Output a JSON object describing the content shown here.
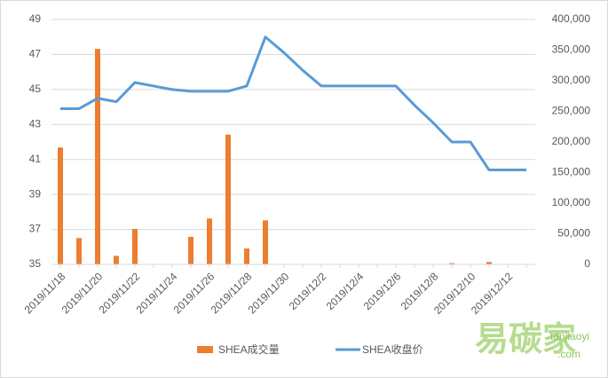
{
  "chart_data": {
    "type": "bar_line",
    "categories": [
      "2019/11/18",
      null,
      "2019/11/20",
      null,
      "2019/11/22",
      null,
      "2019/11/24",
      null,
      "2019/11/26",
      null,
      "2019/11/28",
      null,
      "2019/11/30",
      null,
      "2019/12/2",
      null,
      "2019/12/4",
      null,
      "2019/12/6",
      null,
      "2019/12/8",
      null,
      "2019/12/10",
      null,
      "2019/12/12",
      null
    ],
    "series": [
      {
        "name": "SHEA成交量",
        "type": "bar",
        "axis": "y2",
        "color": "#ed7d31",
        "values": [
          191000,
          43000,
          352000,
          14000,
          58000,
          null,
          null,
          45000,
          75000,
          212000,
          26000,
          72000,
          null,
          null,
          null,
          null,
          null,
          null,
          null,
          null,
          null,
          2000,
          null,
          4000,
          null,
          null
        ]
      },
      {
        "name": "SHEA收盘价",
        "type": "line",
        "color": "#5b9bd5",
        "values": [
          43.9,
          43.9,
          44.5,
          44.3,
          45.4,
          45.2,
          45.0,
          44.9,
          44.9,
          44.9,
          45.2,
          48.0,
          47.1,
          46.1,
          45.2,
          45.2,
          45.2,
          45.2,
          45.2,
          44.1,
          43.1,
          42.0,
          42.0,
          40.4,
          40.4,
          40.4
        ]
      }
    ],
    "ylim": [
      35,
      49
    ],
    "yticks": [
      35,
      37,
      39,
      41,
      43,
      45,
      47,
      49
    ],
    "y2lim": [
      0,
      400000
    ],
    "y2ticks": [
      0,
      {
        "value": 50000,
        "label": "50,000"
      },
      {
        "value": 100000,
        "label": "100,000"
      },
      {
        "value": 150000,
        "label": "150,000"
      },
      {
        "value": 200000,
        "label": "200,000"
      },
      {
        "value": 250000,
        "label": "250,000"
      },
      {
        "value": 300000,
        "label": "300,000"
      },
      {
        "value": 350000,
        "label": "350,000"
      },
      {
        "value": 400000,
        "label": "400,000"
      }
    ],
    "grid": true,
    "legend": "bottom",
    "watermark": {
      "main": "易碳家",
      "site": "tanjiaoyi",
      "domain": ".com"
    }
  }
}
